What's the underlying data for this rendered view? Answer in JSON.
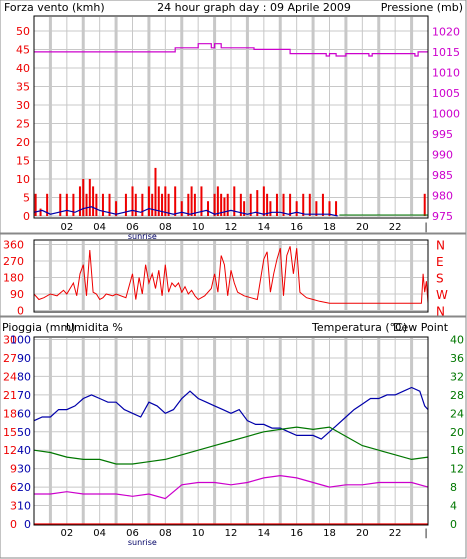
{
  "title": "24 hour graph day : 09 Aprile 2009",
  "colors": {
    "wind": "#ee0000",
    "gust": "#0000aa",
    "pressure": "#cc00cc",
    "temperature": "#007700",
    "dewpoint": "#cc00cc",
    "humidity": "#0000aa",
    "rain": "#ee0000",
    "grid": "#c8c8c8"
  },
  "chart_data": [
    {
      "type": "bar",
      "panel": "wind-pressure",
      "ylabel_left": "Forza vento (kmh)",
      "ylabel_right": "Pressione (mb)",
      "ylim_left": [
        0,
        50
      ],
      "ylim_right": [
        975,
        1020
      ],
      "yticks_left": [
        0,
        5,
        10,
        15,
        20,
        25,
        30,
        35,
        40,
        45,
        50
      ],
      "yticks_right": [
        975,
        980,
        985,
        990,
        995,
        1000,
        1005,
        1010,
        1015,
        1020
      ],
      "xlim": [
        0,
        24
      ],
      "xtick_labels": [
        "02",
        "04",
        "06",
        "08",
        "10",
        "12",
        "14",
        "16",
        "18",
        "20",
        "22"
      ],
      "xtick_hours": [
        2,
        4,
        6,
        8,
        10,
        12,
        14,
        16,
        18,
        20,
        22
      ],
      "annotations": [
        {
          "label": "sunrise",
          "hour": 6.6
        }
      ],
      "series": [
        {
          "name": "wind",
          "kind": "bars",
          "x": [
            0.1,
            0.4,
            0.8,
            1.6,
            2.0,
            2.4,
            2.8,
            3.0,
            3.2,
            3.4,
            3.6,
            3.8,
            4.2,
            4.6,
            5.0,
            5.6,
            6.0,
            6.2,
            6.6,
            7.0,
            7.2,
            7.4,
            7.6,
            7.8,
            8.0,
            8.2,
            8.6,
            9.0,
            9.4,
            9.6,
            9.8,
            10.2,
            10.6,
            11.0,
            11.2,
            11.4,
            11.6,
            11.8,
            12.2,
            12.6,
            12.8,
            13.2,
            13.6,
            14.0,
            14.2,
            14.4,
            14.8,
            15.2,
            15.6,
            16.0,
            16.4,
            16.8,
            17.2,
            17.6,
            18.0,
            18.4,
            23.8
          ],
          "values": [
            6,
            2,
            6,
            6,
            6,
            6,
            8,
            10,
            6,
            10,
            8,
            6,
            6,
            6,
            4,
            6,
            8,
            6,
            6,
            8,
            6,
            13,
            8,
            6,
            8,
            6,
            8,
            4,
            6,
            8,
            6,
            8,
            4,
            6,
            8,
            6,
            5,
            6,
            8,
            6,
            4,
            6,
            7,
            8,
            6,
            4,
            6,
            6,
            6,
            4,
            6,
            6,
            4,
            6,
            4,
            4,
            6
          ]
        },
        {
          "name": "gust",
          "kind": "line",
          "x": [
            0,
            0.5,
            1,
            1.5,
            2,
            2.5,
            3,
            3.5,
            4,
            4.5,
            5,
            5.5,
            6,
            6.5,
            7,
            7.5,
            8,
            8.5,
            9,
            9.5,
            10,
            10.5,
            11,
            11.5,
            12,
            12.5,
            13,
            13.5,
            14,
            14.5,
            15,
            15.5,
            16,
            16.5,
            17,
            17.5,
            18,
            18.5
          ],
          "values": [
            1,
            1.5,
            0.5,
            1,
            1.5,
            1,
            2,
            2.5,
            1.5,
            1,
            0.5,
            1,
            1.5,
            1,
            2,
            1.5,
            1,
            0.5,
            1,
            0.5,
            1,
            1.5,
            0.5,
            1,
            1.5,
            1,
            0.5,
            1,
            0.5,
            1,
            1,
            0.5,
            1,
            0.5,
            0.5,
            0.5,
            0.5,
            0
          ]
        },
        {
          "name": "pressure",
          "kind": "line",
          "axis": "right",
          "x": [
            0,
            8.6,
            8.6,
            10,
            10,
            10.8,
            10.8,
            11,
            11,
            11.4,
            11.4,
            12.4,
            12.4,
            13.4,
            13.4,
            15.6,
            15.6,
            17.8,
            17.8,
            18,
            18,
            18.4,
            18.4,
            19,
            19,
            20.4,
            20.4,
            20.6,
            20.6,
            23.2,
            23.2,
            23.4,
            23.4,
            24
          ],
          "values": [
            1015,
            1015,
            1016,
            1016,
            1017,
            1017,
            1016,
            1016,
            1017,
            1017,
            1016,
            1016,
            1016,
            1016,
            1015.6,
            1015.6,
            1014.6,
            1014.6,
            1014,
            1014,
            1014.6,
            1014.6,
            1014,
            1014,
            1014.6,
            1014.6,
            1014,
            1014,
            1014.6,
            1014.6,
            1014,
            1014,
            1015,
            1015
          ]
        }
      ]
    },
    {
      "type": "line",
      "panel": "wind-direction",
      "yticks_left": [
        0,
        90,
        180,
        270,
        360
      ],
      "ylim": [
        0,
        400
      ],
      "ylabels_right": [
        "N",
        "E",
        "S",
        "W",
        "N"
      ],
      "xlim": [
        0,
        24
      ],
      "series": [
        {
          "name": "direction",
          "x": [
            0,
            0.3,
            0.6,
            1.0,
            1.4,
            1.8,
            2.0,
            2.2,
            2.4,
            2.6,
            2.8,
            3.0,
            3.2,
            3.4,
            3.6,
            3.8,
            4.0,
            4.2,
            4.4,
            4.8,
            5.0,
            5.6,
            6.0,
            6.2,
            6.4,
            6.6,
            6.8,
            7.0,
            7.2,
            7.4,
            7.6,
            7.8,
            8.0,
            8.2,
            8.4,
            8.6,
            8.8,
            9.0,
            9.2,
            9.4,
            9.6,
            9.8,
            10.0,
            10.4,
            10.8,
            11.0,
            11.2,
            11.4,
            11.6,
            11.8,
            12.0,
            12.2,
            12.4,
            12.8,
            13.2,
            13.6,
            14.0,
            14.2,
            14.4,
            14.6,
            14.8,
            15.0,
            15.2,
            15.4,
            15.6,
            15.8,
            16.0,
            16.2,
            16.6,
            17.0,
            17.4,
            18.0,
            19.0,
            20.0,
            21.0,
            22.0,
            22.6,
            23.2,
            23.5,
            23.6,
            23.7,
            23.8,
            23.9,
            24.0
          ],
          "values": [
            90,
            60,
            70,
            90,
            80,
            110,
            90,
            120,
            150,
            80,
            200,
            250,
            80,
            330,
            100,
            90,
            60,
            70,
            90,
            80,
            90,
            70,
            200,
            60,
            180,
            90,
            250,
            150,
            200,
            120,
            220,
            80,
            250,
            100,
            150,
            130,
            150,
            100,
            130,
            90,
            110,
            80,
            60,
            80,
            120,
            200,
            100,
            300,
            250,
            80,
            220,
            150,
            100,
            80,
            70,
            60,
            280,
            320,
            100,
            200,
            280,
            340,
            80,
            300,
            350,
            200,
            340,
            100,
            70,
            60,
            50,
            40,
            40,
            40,
            40,
            40,
            40,
            40,
            40,
            40,
            200,
            100,
            160,
            40
          ]
        }
      ]
    },
    {
      "type": "line",
      "panel": "temp-humidity",
      "ylabel_left_1": "Pioggia (mm)",
      "ylabel_left_2": "Umidita %",
      "ylabel_right_1": "Temperatura (°C)",
      "ylabel_right_2": "Dew Point",
      "yticks_humidity": [
        0,
        10,
        20,
        30,
        40,
        50,
        60,
        70,
        80,
        90,
        100
      ],
      "yticks_rain": [
        0,
        3,
        6,
        9,
        12,
        15,
        18,
        21,
        24,
        27,
        30
      ],
      "yticks_temp": [
        0,
        4,
        8,
        12,
        16,
        20,
        24,
        28,
        32,
        36,
        40
      ],
      "ylim_temp": [
        0,
        40
      ],
      "xlim": [
        0,
        24
      ],
      "xtick_labels": [
        "02",
        "04",
        "06",
        "08",
        "10",
        "12",
        "14",
        "16",
        "18",
        "20",
        "22"
      ],
      "xtick_hours": [
        2,
        4,
        6,
        8,
        10,
        12,
        14,
        16,
        18,
        20,
        22
      ],
      "annotations": [
        {
          "label": "sunrise",
          "hour": 6.6
        }
      ],
      "series": [
        {
          "name": "humidity",
          "axis": "humidity",
          "x": [
            0,
            0.5,
            1,
            1.5,
            2,
            2.5,
            3,
            3.5,
            4,
            4.5,
            5,
            5.5,
            6,
            6.5,
            7,
            7.5,
            8,
            8.5,
            9,
            9.5,
            10,
            10.5,
            11,
            11.5,
            12,
            12.5,
            13,
            13.5,
            14,
            14.5,
            15,
            15.5,
            16,
            16.5,
            17,
            17.5,
            18,
            18.5,
            19,
            19.5,
            20,
            20.5,
            21,
            21.5,
            22,
            22.5,
            23,
            23.5,
            23.8,
            24
          ],
          "values": [
            56,
            58,
            58,
            62,
            62,
            64,
            68,
            70,
            68,
            66,
            66,
            62,
            60,
            58,
            66,
            64,
            60,
            62,
            68,
            72,
            68,
            66,
            64,
            62,
            60,
            62,
            56,
            54,
            54,
            52,
            52,
            50,
            48,
            48,
            48,
            46,
            50,
            54,
            58,
            62,
            65,
            68,
            68,
            70,
            70,
            72,
            74,
            72,
            64,
            62
          ]
        },
        {
          "name": "temperature",
          "axis": "temp",
          "x": [
            0,
            1,
            2,
            3,
            4,
            5,
            6,
            7,
            8,
            9,
            10,
            11,
            12,
            13,
            14,
            15,
            16,
            17,
            18,
            19,
            20,
            21,
            22,
            23,
            24
          ],
          "values": [
            16,
            15.5,
            14.5,
            14,
            14,
            13,
            13,
            13.5,
            14,
            15,
            16,
            17,
            18,
            19,
            20,
            20.5,
            21,
            20.5,
            21,
            19,
            17,
            16,
            15,
            14,
            14.5
          ]
        },
        {
          "name": "dewpoint",
          "axis": "temp",
          "x": [
            0,
            1,
            2,
            3,
            4,
            5,
            6,
            7,
            8,
            9,
            10,
            11,
            12,
            13,
            14,
            15,
            16,
            17,
            18,
            19,
            20,
            21,
            22,
            23,
            24
          ],
          "values": [
            6.5,
            6.5,
            7,
            6.5,
            6.5,
            6.5,
            6,
            6.5,
            5.5,
            8.5,
            9,
            9,
            8.5,
            9,
            10,
            10.5,
            10,
            9,
            8,
            8.5,
            8.5,
            9,
            9,
            9,
            8
          ]
        },
        {
          "name": "rain",
          "axis": "rain",
          "x": [
            0,
            24
          ],
          "values": [
            0,
            0
          ]
        }
      ]
    }
  ]
}
